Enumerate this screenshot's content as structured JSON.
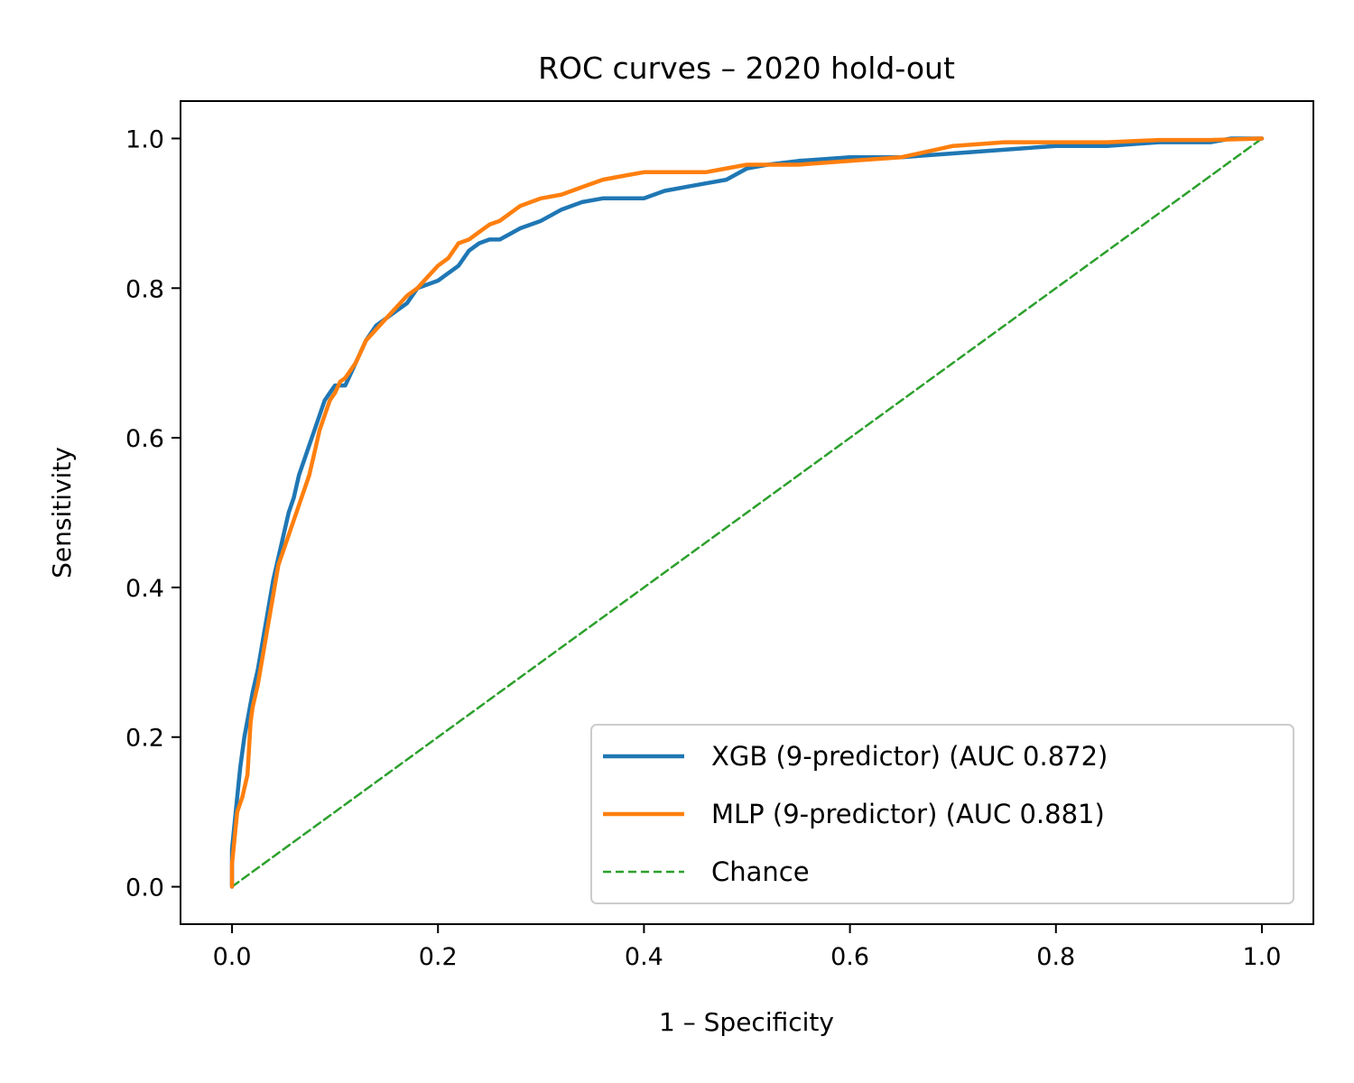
{
  "chart_data": {
    "type": "line",
    "title": "ROC curves – 2020 hold-out",
    "xlabel": "1 – Specificity",
    "ylabel": "Sensitivity",
    "xlim": [
      -0.05,
      1.05
    ],
    "ylim": [
      -0.05,
      1.05
    ],
    "xticks": [
      0.0,
      0.2,
      0.4,
      0.6,
      0.8,
      1.0
    ],
    "yticks": [
      0.0,
      0.2,
      0.4,
      0.6,
      0.8,
      1.0
    ],
    "xtick_labels": [
      "0.0",
      "0.2",
      "0.4",
      "0.6",
      "0.8",
      "1.0"
    ],
    "ytick_labels": [
      "0.0",
      "0.2",
      "0.4",
      "0.6",
      "0.8",
      "1.0"
    ],
    "grid": false,
    "legend_position": "bottom-right",
    "series": [
      {
        "name": "XGB (9-predictor) (AUC 0.872)",
        "color": "#1f77b4",
        "style": "solid",
        "x": [
          0.0,
          0.0,
          0.005,
          0.008,
          0.012,
          0.016,
          0.02,
          0.025,
          0.03,
          0.035,
          0.04,
          0.045,
          0.05,
          0.055,
          0.06,
          0.065,
          0.07,
          0.075,
          0.08,
          0.085,
          0.09,
          0.095,
          0.1,
          0.105,
          0.11,
          0.12,
          0.13,
          0.14,
          0.15,
          0.16,
          0.17,
          0.18,
          0.19,
          0.2,
          0.21,
          0.22,
          0.23,
          0.24,
          0.25,
          0.26,
          0.28,
          0.3,
          0.32,
          0.34,
          0.36,
          0.38,
          0.4,
          0.42,
          0.44,
          0.46,
          0.48,
          0.5,
          0.52,
          0.55,
          0.6,
          0.65,
          0.7,
          0.75,
          0.8,
          0.85,
          0.9,
          0.95,
          0.97,
          1.0
        ],
        "y": [
          0.0,
          0.05,
          0.12,
          0.16,
          0.2,
          0.23,
          0.26,
          0.29,
          0.33,
          0.37,
          0.41,
          0.44,
          0.47,
          0.5,
          0.52,
          0.55,
          0.57,
          0.59,
          0.61,
          0.63,
          0.65,
          0.66,
          0.67,
          0.67,
          0.67,
          0.7,
          0.73,
          0.75,
          0.76,
          0.77,
          0.78,
          0.8,
          0.805,
          0.81,
          0.82,
          0.83,
          0.85,
          0.86,
          0.865,
          0.865,
          0.88,
          0.89,
          0.905,
          0.915,
          0.92,
          0.92,
          0.92,
          0.93,
          0.935,
          0.94,
          0.945,
          0.96,
          0.965,
          0.97,
          0.975,
          0.975,
          0.98,
          0.985,
          0.99,
          0.99,
          0.995,
          0.995,
          1.0,
          1.0
        ]
      },
      {
        "name": "MLP (9-predictor) (AUC 0.881)",
        "color": "#ff7f0e",
        "style": "solid",
        "x": [
          0.0,
          0.0,
          0.005,
          0.01,
          0.015,
          0.018,
          0.02,
          0.025,
          0.03,
          0.035,
          0.04,
          0.045,
          0.05,
          0.055,
          0.06,
          0.065,
          0.07,
          0.075,
          0.08,
          0.085,
          0.09,
          0.095,
          0.1,
          0.105,
          0.11,
          0.12,
          0.13,
          0.14,
          0.15,
          0.16,
          0.17,
          0.18,
          0.19,
          0.2,
          0.21,
          0.22,
          0.23,
          0.24,
          0.25,
          0.26,
          0.28,
          0.3,
          0.32,
          0.34,
          0.36,
          0.38,
          0.4,
          0.42,
          0.44,
          0.46,
          0.48,
          0.5,
          0.52,
          0.55,
          0.6,
          0.65,
          0.7,
          0.75,
          0.8,
          0.85,
          0.9,
          0.95,
          1.0
        ],
        "y": [
          0.0,
          0.03,
          0.1,
          0.12,
          0.15,
          0.22,
          0.24,
          0.27,
          0.31,
          0.35,
          0.39,
          0.43,
          0.45,
          0.47,
          0.49,
          0.51,
          0.53,
          0.55,
          0.58,
          0.61,
          0.63,
          0.65,
          0.66,
          0.675,
          0.68,
          0.7,
          0.73,
          0.745,
          0.76,
          0.775,
          0.79,
          0.8,
          0.815,
          0.83,
          0.84,
          0.86,
          0.865,
          0.875,
          0.885,
          0.89,
          0.91,
          0.92,
          0.925,
          0.935,
          0.945,
          0.95,
          0.955,
          0.955,
          0.955,
          0.955,
          0.96,
          0.965,
          0.965,
          0.965,
          0.97,
          0.975,
          0.99,
          0.995,
          0.995,
          0.995,
          0.998,
          0.998,
          1.0
        ]
      },
      {
        "name": "Chance",
        "color": "#2ca02c",
        "style": "dashed",
        "x": [
          0.0,
          1.0
        ],
        "y": [
          0.0,
          1.0
        ]
      }
    ]
  }
}
